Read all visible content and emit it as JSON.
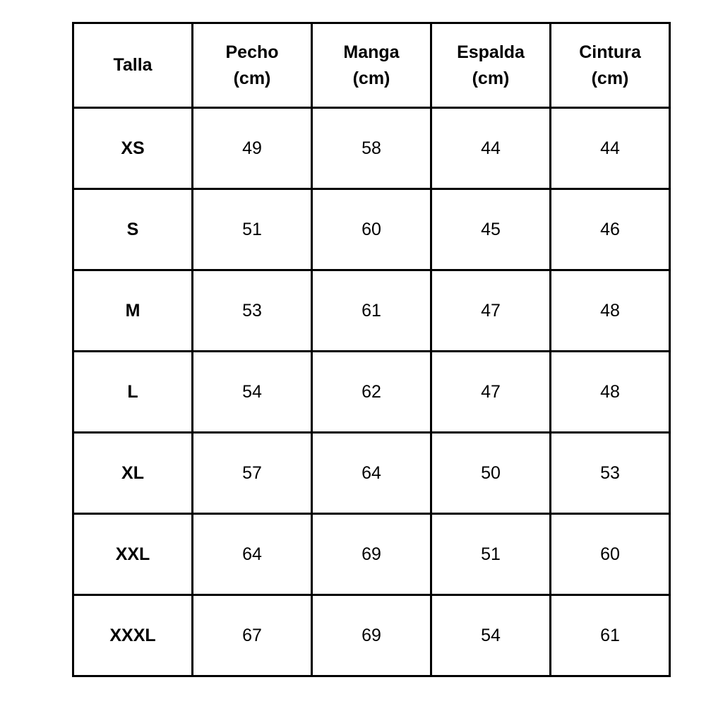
{
  "table": {
    "headers": [
      {
        "line1": "Talla",
        "line2": ""
      },
      {
        "line1": "Pecho",
        "line2": "(cm)"
      },
      {
        "line1": "Manga",
        "line2": "(cm)"
      },
      {
        "line1": "Espalda",
        "line2": "(cm)"
      },
      {
        "line1": "Cintura",
        "line2": "(cm)"
      }
    ],
    "rows": [
      [
        "XS",
        "49",
        "58",
        "44",
        "44"
      ],
      [
        "S",
        "51",
        "60",
        "45",
        "46"
      ],
      [
        "M",
        "53",
        "61",
        "47",
        "48"
      ],
      [
        "L",
        "54",
        "62",
        "47",
        "48"
      ],
      [
        "XL",
        "57",
        "64",
        "50",
        "53"
      ],
      [
        "XXL",
        "64",
        "69",
        "51",
        "60"
      ],
      [
        "XXXL",
        "67",
        "69",
        "54",
        "61"
      ]
    ]
  }
}
